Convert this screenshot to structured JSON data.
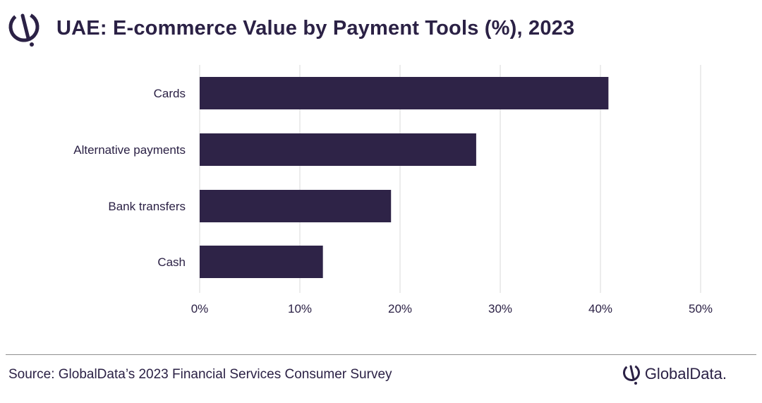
{
  "header": {
    "title": "UAE: E-commerce Value by Payment Tools (%), 2023"
  },
  "chart_data": {
    "type": "bar",
    "orientation": "horizontal",
    "title": "UAE: E-commerce Value by Payment Tools (%), 2023",
    "xlabel": "",
    "ylabel": "",
    "categories": [
      "Cards",
      "Alternative payments",
      "Bank transfers",
      "Cash"
    ],
    "values": [
      40.8,
      27.6,
      19.1,
      12.3
    ],
    "x_ticks": [
      "0%",
      "10%",
      "20%",
      "30%",
      "40%",
      "50%"
    ],
    "xlim": [
      0,
      50
    ],
    "grid": "vertical",
    "legend": "none",
    "bar_color": "#2e2347"
  },
  "footer": {
    "source": "Source: GlobalData’s 2023 Financial Services Consumer Survey",
    "brand_icon": "globaldata-logo-icon",
    "brand": "GlobalData."
  },
  "colors": {
    "text": "#2b2145",
    "bar": "#2e2347",
    "grid": "#d9d9d9",
    "divider": "#8e8e8e"
  }
}
